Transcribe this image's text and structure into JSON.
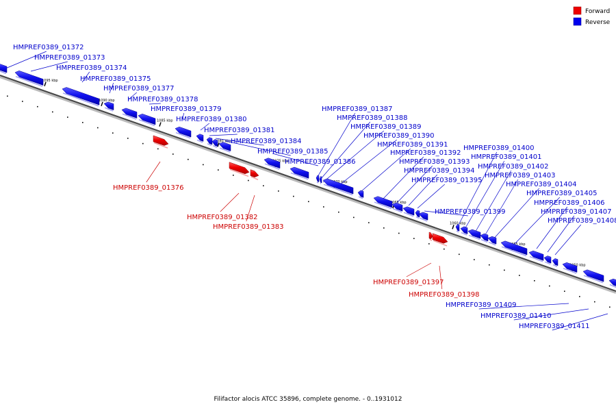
{
  "title": "Filifactor alocis ATCC 35896, complete genome. - 0..1931012",
  "legend": [
    {
      "label": "Forward",
      "color": "#ee0000"
    },
    {
      "label": "Reverse",
      "color": "#0000ee"
    }
  ],
  "scale_ticks": [
    "1095 kbp",
    "1090 kbp",
    "1085 kbp",
    "1080 kbp",
    "1075 kbp",
    "1070 kbp",
    "1065 kbp",
    "1060 kbp",
    "1055 kbp",
    "1050 kbp"
  ],
  "genes": [
    {
      "id": "HMPREF0389_01372",
      "strand": "reverse"
    },
    {
      "id": "HMPREF0389_01373",
      "strand": "reverse"
    },
    {
      "id": "HMPREF0389_01374",
      "strand": "reverse"
    },
    {
      "id": "HMPREF0389_01375",
      "strand": "reverse"
    },
    {
      "id": "HMPREF0389_01377",
      "strand": "reverse"
    },
    {
      "id": "HMPREF0389_01378",
      "strand": "reverse"
    },
    {
      "id": "HMPREF0389_01379",
      "strand": "reverse"
    },
    {
      "id": "HMPREF0389_01380",
      "strand": "reverse"
    },
    {
      "id": "HMPREF0389_01381",
      "strand": "reverse"
    },
    {
      "id": "HMPREF0389_01384",
      "strand": "reverse"
    },
    {
      "id": "HMPREF0389_01385",
      "strand": "reverse"
    },
    {
      "id": "HMPREF0389_01386",
      "strand": "reverse"
    },
    {
      "id": "HMPREF0389_01387",
      "strand": "reverse"
    },
    {
      "id": "HMPREF0389_01388",
      "strand": "reverse"
    },
    {
      "id": "HMPREF0389_01389",
      "strand": "reverse"
    },
    {
      "id": "HMPREF0389_01390",
      "strand": "reverse"
    },
    {
      "id": "HMPREF0389_01391",
      "strand": "reverse"
    },
    {
      "id": "HMPREF0389_01392",
      "strand": "reverse"
    },
    {
      "id": "HMPREF0389_01393",
      "strand": "reverse"
    },
    {
      "id": "HMPREF0389_01394",
      "strand": "reverse"
    },
    {
      "id": "HMPREF0389_01395",
      "strand": "reverse"
    },
    {
      "id": "HMPREF0389_01399",
      "strand": "reverse"
    },
    {
      "id": "HMPREF0389_01400",
      "strand": "reverse"
    },
    {
      "id": "HMPREF0389_01401",
      "strand": "reverse"
    },
    {
      "id": "HMPREF0389_01402",
      "strand": "reverse"
    },
    {
      "id": "HMPREF0389_01403",
      "strand": "reverse"
    },
    {
      "id": "HMPREF0389_01404",
      "strand": "reverse"
    },
    {
      "id": "HMPREF0389_01405",
      "strand": "reverse"
    },
    {
      "id": "HMPREF0389_01406",
      "strand": "reverse"
    },
    {
      "id": "HMPREF0389_01407",
      "strand": "reverse"
    },
    {
      "id": "HMPREF0389_01408",
      "strand": "reverse"
    },
    {
      "id": "HMPREF0389_01376",
      "strand": "forward"
    },
    {
      "id": "HMPREF0389_01382",
      "strand": "forward"
    },
    {
      "id": "HMPREF0389_01383",
      "strand": "forward"
    },
    {
      "id": "HMPREF0389_01397",
      "strand": "forward"
    },
    {
      "id": "HMPREF0389_01398",
      "strand": "forward"
    },
    {
      "id": "HMPREF0389_01409",
      "strand": "reverse"
    },
    {
      "id": "HMPREF0389_01410",
      "strand": "reverse"
    },
    {
      "id": "HMPREF0389_01411",
      "strand": "reverse"
    }
  ]
}
